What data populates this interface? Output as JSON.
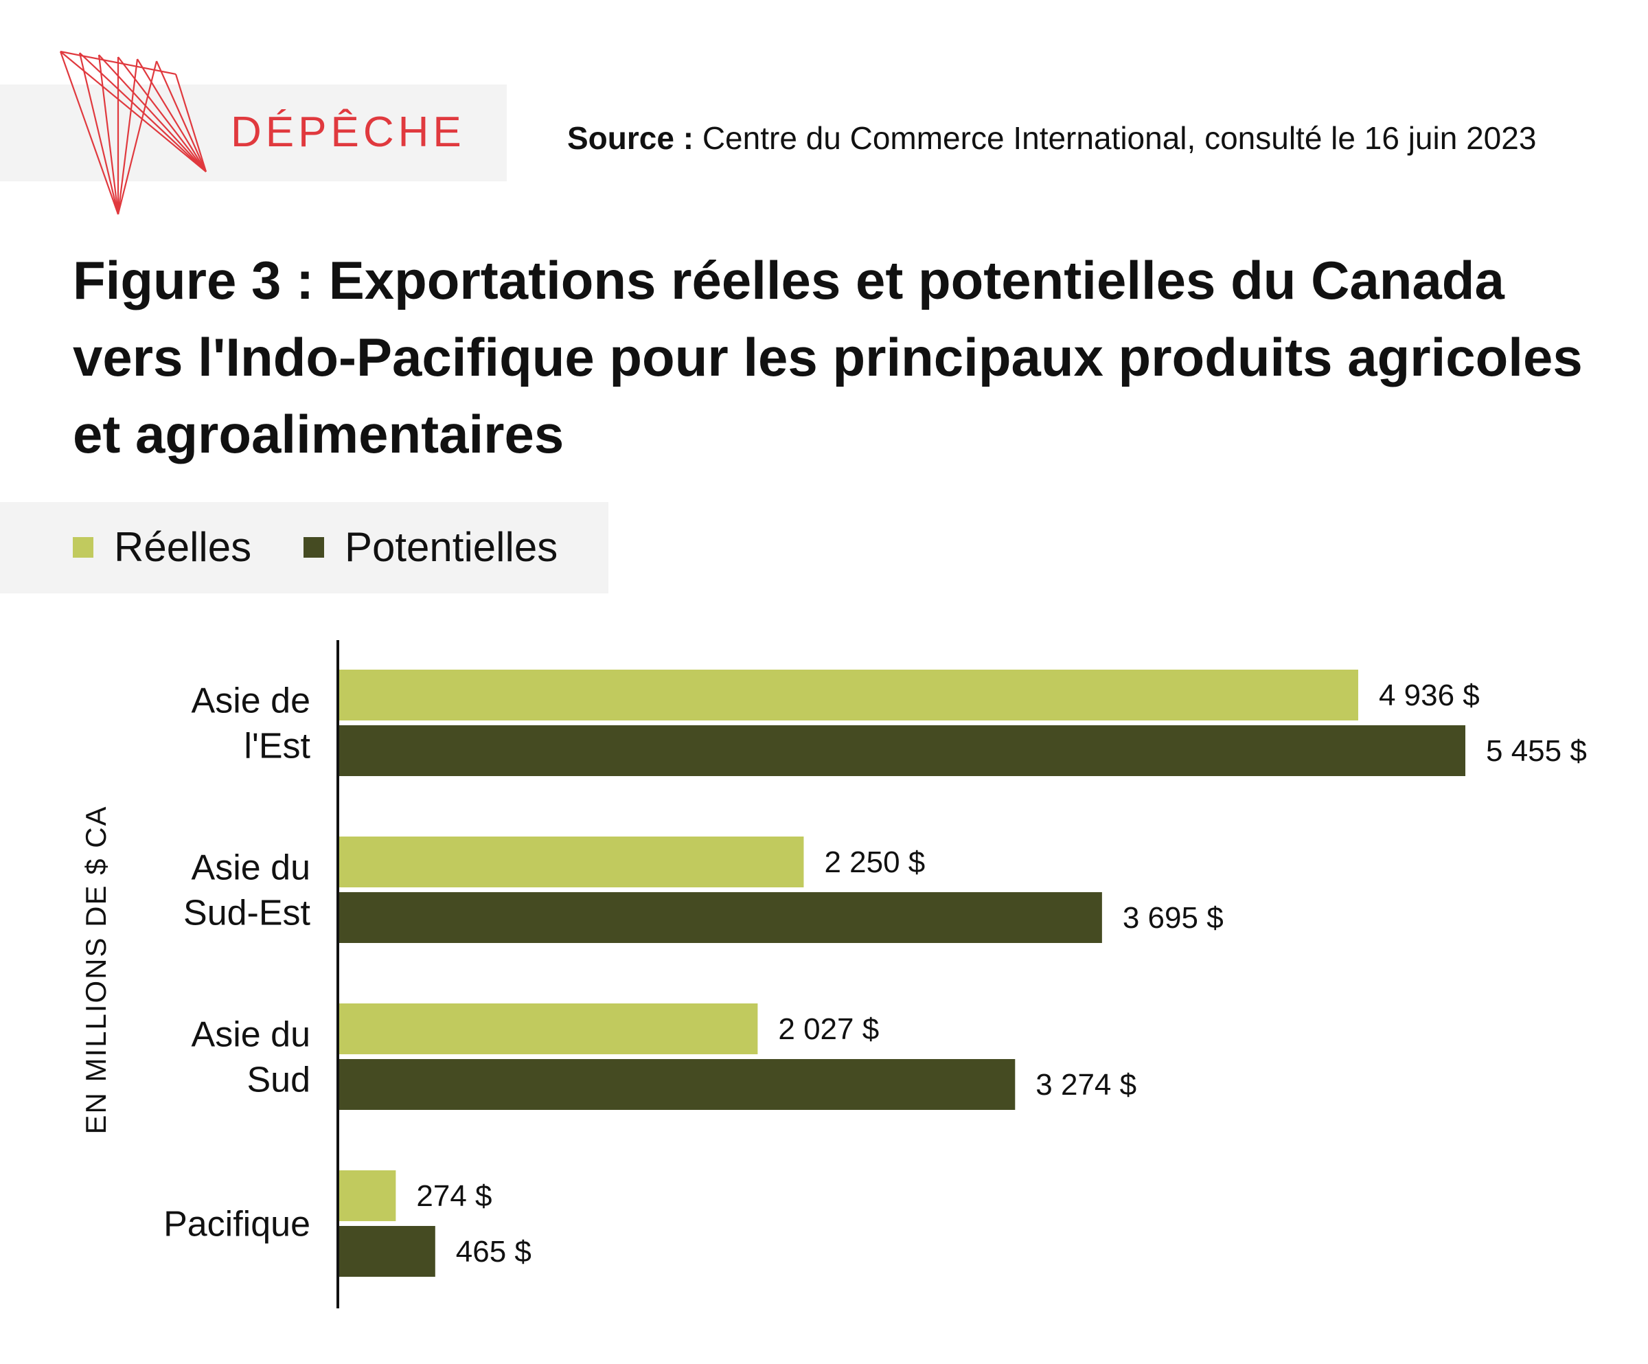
{
  "header": {
    "logo_text": "DÉPÊCHE",
    "source_label": "Source :",
    "source_text": "Centre du Commerce International, consulté le 16 juin 2023"
  },
  "chart_data": {
    "type": "bar",
    "orientation": "horizontal",
    "title": "Figure 3 : Exportations réelles et potentielles du Canada vers l'Indo-Pacifique pour les principaux produits agricoles et agroalimentaires",
    "ylabel": "EN MILLIONS DE $ CA",
    "xlabel": "",
    "categories": [
      [
        "Asie de",
        "l'Est"
      ],
      [
        "Asie du",
        "Sud-Est"
      ],
      [
        "Asie du",
        "Sud"
      ],
      [
        "Pacifique"
      ]
    ],
    "series": [
      {
        "name": "Réelles",
        "color": "#c1ca5e",
        "values": [
          4936,
          2250,
          2027,
          274
        ],
        "labels": [
          "4 936 $",
          "2 250 $",
          "2 027 $",
          "274 $"
        ]
      },
      {
        "name": "Potentielles",
        "color": "#454b22",
        "values": [
          5455,
          3695,
          3274,
          465
        ],
        "labels": [
          "5 455 $",
          "3 695 $",
          "3 274 $",
          "465 $"
        ]
      }
    ],
    "legend_position": "top-left",
    "grid": false,
    "xlim": [
      0,
      5455
    ]
  }
}
